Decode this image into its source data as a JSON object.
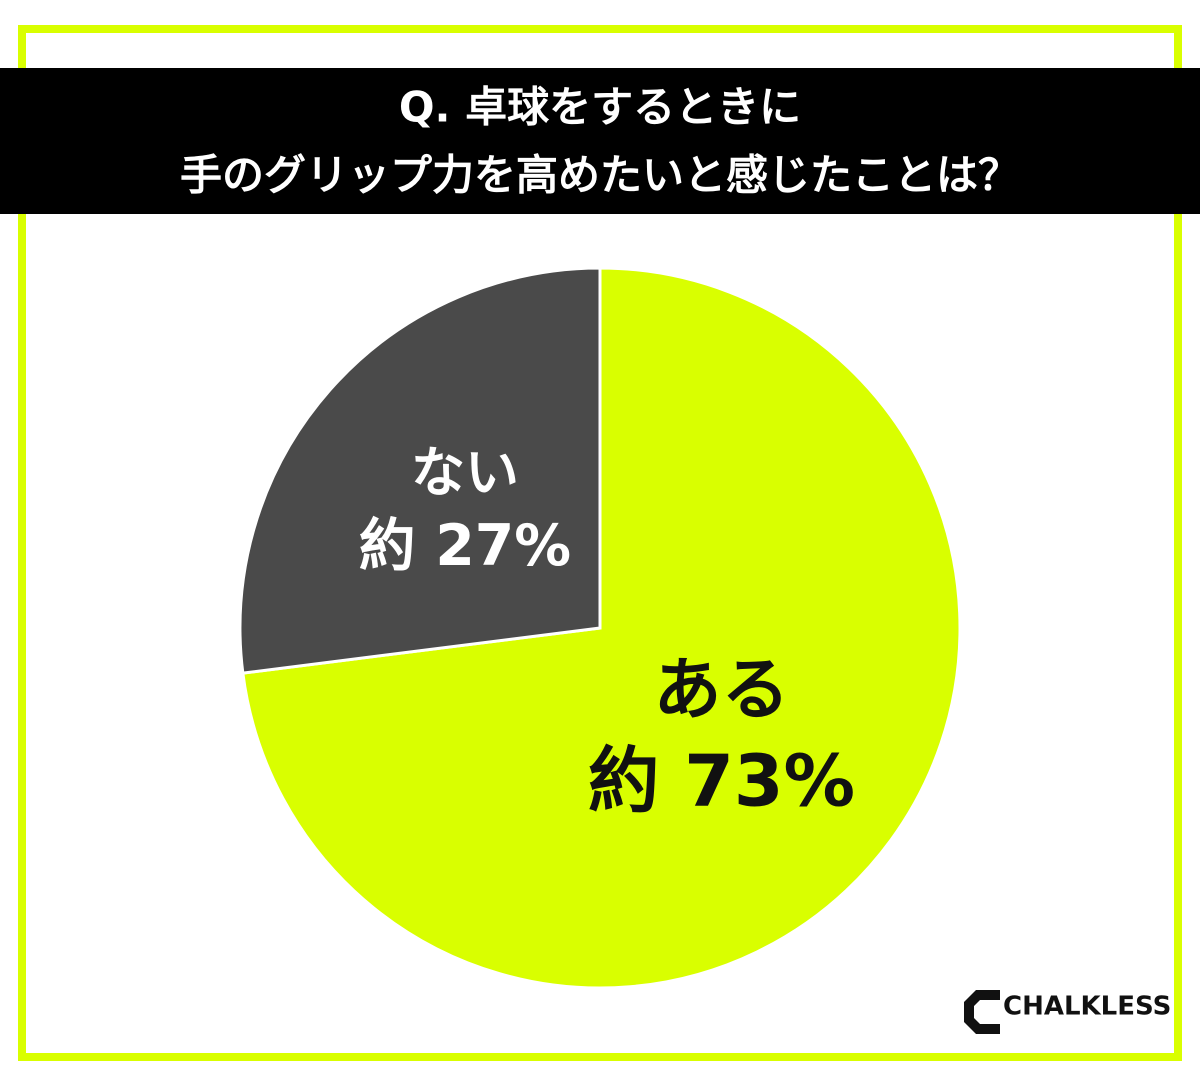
{
  "chart_data": {
    "type": "pie",
    "title": [
      "Q. 卓球をするときに",
      "手のグリップ力を高めたいと感じたことは？"
    ],
    "categories": [
      "ある",
      "ない"
    ],
    "values": [
      73,
      27
    ],
    "value_labels": [
      "約 73%",
      "約 27%"
    ],
    "colors": [
      "#d9ff00",
      "#4a4a4a"
    ]
  },
  "brand": "CHALKLESS"
}
